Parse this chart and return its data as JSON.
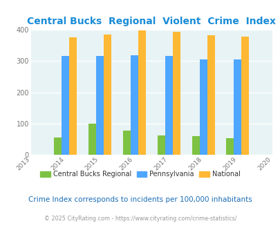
{
  "title": "Central Bucks  Regional  Violent  Crime  Index",
  "years": [
    2014,
    2015,
    2016,
    2017,
    2018,
    2019
  ],
  "central_bucks": [
    55,
    100,
    78,
    62,
    60,
    54
  ],
  "pennsylvania": [
    315,
    315,
    318,
    315,
    306,
    306
  ],
  "national": [
    375,
    385,
    398,
    394,
    382,
    378
  ],
  "color_cb": "#7dc242",
  "color_pa": "#4da6ff",
  "color_nat": "#ffb833",
  "bg_plot": "#e8f3f5",
  "bg_fig": "#ffffff",
  "xlim": [
    2013,
    2020
  ],
  "ylim": [
    0,
    400
  ],
  "yticks": [
    0,
    100,
    200,
    300,
    400
  ],
  "title_color": "#1a8cd8",
  "legend_labels": [
    "Central Bucks Regional",
    "Pennsylvania",
    "National"
  ],
  "legend_text_color": "#333333",
  "footnote1": "Crime Index corresponds to incidents per 100,000 inhabitants",
  "footnote2": "© 2025 CityRating.com - https://www.cityrating.com/crime-statistics/",
  "bar_width": 0.22
}
